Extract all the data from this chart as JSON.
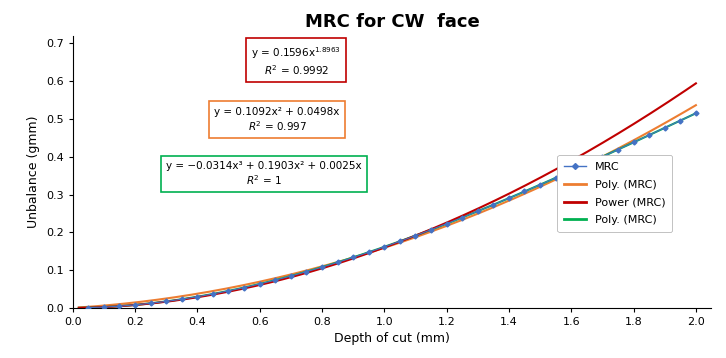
{
  "title": "MRC for CW  face",
  "xlabel": "Depth of cut (mm)",
  "ylabel": "Unbalance (gmm)",
  "xlim": [
    0,
    2.05
  ],
  "ylim": [
    0,
    0.72
  ],
  "xticks": [
    0.0,
    0.2,
    0.4,
    0.6,
    0.8,
    1.0,
    1.2,
    1.4,
    1.6,
    1.8,
    2.0
  ],
  "yticks": [
    0.0,
    0.1,
    0.2,
    0.3,
    0.4,
    0.5,
    0.6,
    0.7
  ],
  "mrc_x": [
    0.05,
    0.1,
    0.15,
    0.2,
    0.25,
    0.3,
    0.35,
    0.4,
    0.45,
    0.5,
    0.55,
    0.6,
    0.65,
    0.7,
    0.75,
    0.8,
    0.85,
    0.9,
    0.95,
    1.0,
    1.05,
    1.1,
    1.15,
    1.2,
    1.25,
    1.3,
    1.35,
    1.4,
    1.45,
    1.5,
    1.55,
    1.6,
    1.65,
    1.7,
    1.75,
    1.8,
    1.85,
    1.9,
    1.95,
    2.0
  ],
  "poly2_coeffs": [
    0.1092,
    0.0498,
    0.0
  ],
  "poly3_coeffs": [
    -0.0314,
    0.1903,
    0.0025,
    0.0
  ],
  "power_coeffs": [
    0.1596,
    1.8963
  ],
  "mrc_color": "#4472c4",
  "poly2_color": "#ed7d31",
  "power_color": "#c00000",
  "poly3_color": "#00b050",
  "box_red_color": "#c00000",
  "box_orange_color": "#ed7d31",
  "box_green_color": "#00b050",
  "legend_labels": [
    "MRC",
    "Poly. (MRC)",
    "Power (MRC)",
    "Poly. (MRC)"
  ],
  "legend_colors": [
    "#4472c4",
    "#ed7d31",
    "#c00000",
    "#00b050"
  ],
  "title_fontsize": 13,
  "axis_label_fontsize": 9,
  "tick_fontsize": 8,
  "annot_fontsize": 7.5
}
